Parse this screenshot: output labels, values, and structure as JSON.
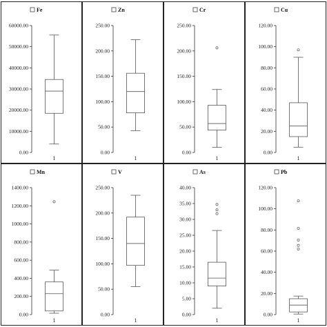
{
  "chart_data": [
    {
      "type": "box",
      "title": "Fe",
      "category": "1",
      "ylim": [
        0,
        60000
      ],
      "ticks": [
        "0.00",
        "10000.00",
        "20000.00",
        "30000.00",
        "40000.00",
        "50000.00",
        "60000.00"
      ],
      "min": 4000,
      "q1": 18500,
      "median": 29000,
      "q3": 34500,
      "max": 55500,
      "outliers": []
    },
    {
      "type": "box",
      "title": "Zn",
      "category": "1",
      "ylim": [
        0,
        250
      ],
      "ticks": [
        "0.00",
        "50.00",
        "100.00",
        "150.00",
        "200.00",
        "250.00"
      ],
      "min": 43,
      "q1": 78,
      "median": 120,
      "q3": 156,
      "max": 222,
      "outliers": []
    },
    {
      "type": "box",
      "title": "Cr",
      "category": "1",
      "ylim": [
        0,
        250
      ],
      "ticks": [
        "0.00",
        "50.00",
        "100.00",
        "150.00",
        "200.00",
        "250.00"
      ],
      "min": 10,
      "q1": 44,
      "median": 57,
      "q3": 93,
      "max": 124,
      "outliers": [
        206
      ]
    },
    {
      "type": "box",
      "title": "Cu",
      "category": "1",
      "ylim": [
        0,
        120
      ],
      "ticks": [
        "0.00",
        "20.00",
        "40.00",
        "60.00",
        "80.00",
        "100.00",
        "120.00"
      ],
      "min": 5,
      "q1": 15,
      "median": 25,
      "q3": 47,
      "max": 90,
      "outliers": [
        97
      ]
    },
    {
      "type": "box",
      "title": "Mn",
      "category": "1",
      "ylim": [
        0,
        1400
      ],
      "ticks": [
        "0.00",
        "200.00",
        "400.00",
        "600.00",
        "800.00",
        "1000.00",
        "1200.00",
        "1400.00"
      ],
      "min": 15,
      "q1": 40,
      "median": 230,
      "q3": 360,
      "max": 490,
      "outliers": [
        1245
      ]
    },
    {
      "type": "box",
      "title": "V",
      "category": "1",
      "ylim": [
        0,
        250
      ],
      "ticks": [
        "0.00",
        "50.00",
        "100.00",
        "150.00",
        "200.00",
        "250.00"
      ],
      "min": 55,
      "q1": 97,
      "median": 140,
      "q3": 192,
      "max": 235,
      "outliers": []
    },
    {
      "type": "box",
      "title": "As",
      "category": "1",
      "ylim": [
        0,
        40
      ],
      "ticks": [
        "0.00",
        "5.00",
        "10.00",
        "15.00",
        "20.00",
        "25.00",
        "30.00",
        "35.00",
        "40.00"
      ],
      "min": 2,
      "q1": 9,
      "median": 11.5,
      "q3": 16.5,
      "max": 26.5,
      "outliers": [
        31.8,
        33,
        34.7
      ]
    },
    {
      "type": "box",
      "title": "Pb",
      "category": "1",
      "ylim": [
        0,
        120
      ],
      "ticks": [
        "0.00",
        "20.00",
        "40.00",
        "60.00",
        "80.00",
        "100.00",
        "120.00"
      ],
      "min": 0.5,
      "q1": 2.5,
      "median": 9,
      "q3": 15,
      "max": 17.5,
      "outliers": [
        62,
        65.5,
        70.5,
        81.5,
        107.5
      ]
    }
  ]
}
